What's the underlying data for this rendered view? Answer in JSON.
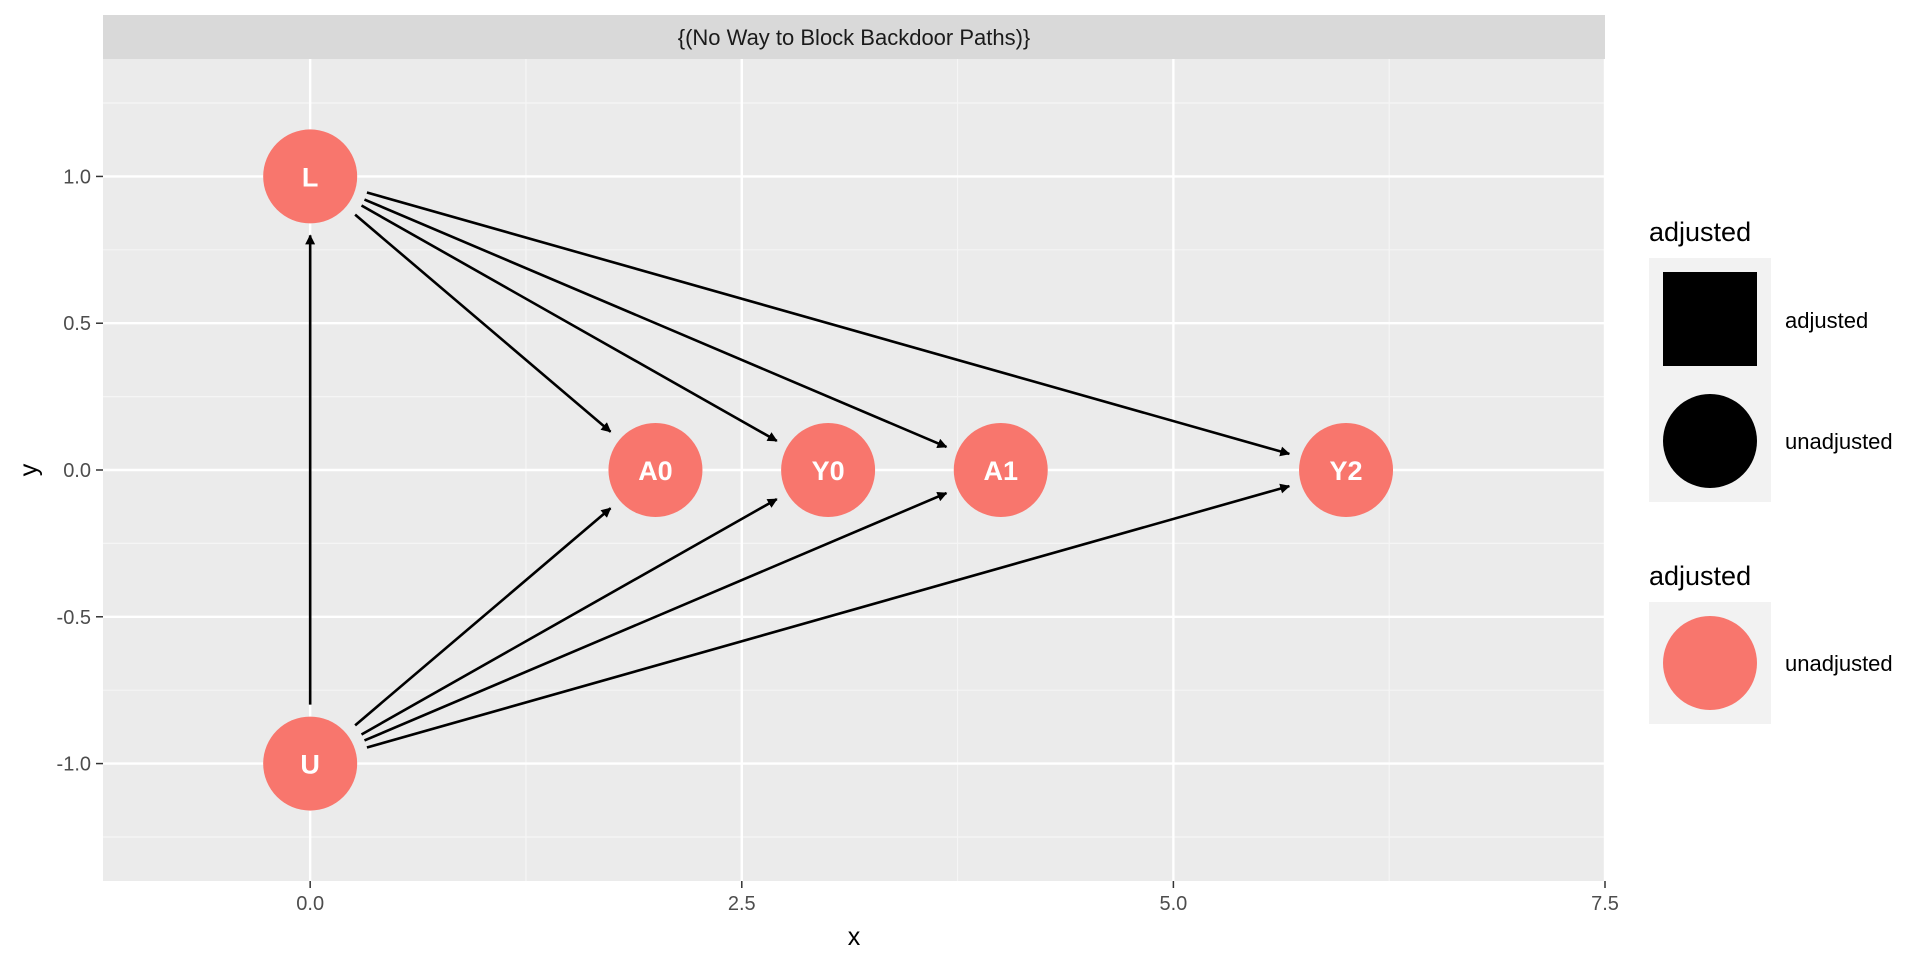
{
  "chart_data": {
    "type": "diagram",
    "title": "{(No Way to Block Backdoor Paths)}",
    "xlabel": "x",
    "ylabel": "y",
    "xlim": [
      -1.2,
      7.5
    ],
    "ylim": [
      -1.4,
      1.4
    ],
    "x_ticks": [
      0.0,
      2.5,
      5.0,
      7.5
    ],
    "x_tick_labels": [
      "0.0",
      "2.5",
      "5.0",
      "7.5"
    ],
    "y_ticks": [
      1.0,
      0.5,
      0.0,
      -0.5,
      -1.0
    ],
    "y_tick_labels": [
      "1.0",
      "0.5",
      "0.0",
      "-0.5",
      "-1.0"
    ],
    "grid": true,
    "node_color": "#F8766D",
    "nodes": [
      {
        "name": "L",
        "x": 0,
        "y": 1
      },
      {
        "name": "U",
        "x": 0,
        "y": -1
      },
      {
        "name": "A0",
        "x": 2,
        "y": 0
      },
      {
        "name": "Y0",
        "x": 3,
        "y": 0
      },
      {
        "name": "A1",
        "x": 4,
        "y": 0
      },
      {
        "name": "Y2",
        "x": 6,
        "y": 0
      }
    ],
    "edges": [
      {
        "from": "U",
        "to": "L"
      },
      {
        "from": "L",
        "to": "A0"
      },
      {
        "from": "L",
        "to": "Y0"
      },
      {
        "from": "L",
        "to": "A1"
      },
      {
        "from": "L",
        "to": "Y2"
      },
      {
        "from": "U",
        "to": "A0"
      },
      {
        "from": "U",
        "to": "Y0"
      },
      {
        "from": "U",
        "to": "A1"
      },
      {
        "from": "U",
        "to": "Y2"
      }
    ],
    "legend": {
      "position": "right",
      "shape_title": "adjusted",
      "shape_items": [
        {
          "label": "adjusted",
          "shape": "square"
        },
        {
          "label": "unadjusted",
          "shape": "circle"
        }
      ],
      "color_title": "adjusted",
      "color_items": [
        {
          "label": "unadjusted",
          "color": "#F8766D"
        }
      ]
    }
  }
}
